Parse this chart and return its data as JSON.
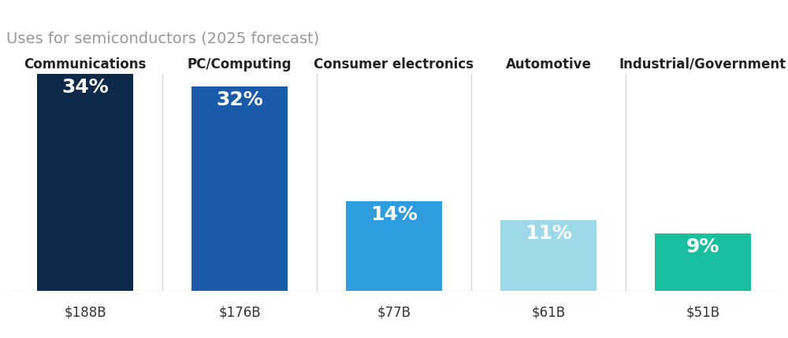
{
  "title": "Uses for semiconductors (2025 forecast)",
  "categories": [
    "Communications",
    "PC/Computing",
    "Consumer electronics",
    "Automotive",
    "Industrial/Government"
  ],
  "values": [
    34,
    32,
    14,
    11,
    9
  ],
  "dollar_labels": [
    "$188B",
    "$176B",
    "$77B",
    "$61B",
    "$51B"
  ],
  "pct_labels": [
    "34%",
    "32%",
    "14%",
    "11%",
    "9%"
  ],
  "bar_colors": [
    "#0d2a4a",
    "#1a5aab",
    "#2e9de0",
    "#9dd9e8",
    "#1abfa0"
  ],
  "background_color": "#ffffff",
  "title_color": "#999999",
  "category_label_color": "#222222",
  "dollar_label_color": "#333333",
  "pct_text_color": "#ffffff",
  "separator_color": "#d0d0d0",
  "title_fontsize": 14,
  "category_fontsize": 12,
  "pct_fontsize": 18,
  "dollar_fontsize": 12,
  "figsize": [
    10.0,
    4.31
  ],
  "dpi": 100
}
